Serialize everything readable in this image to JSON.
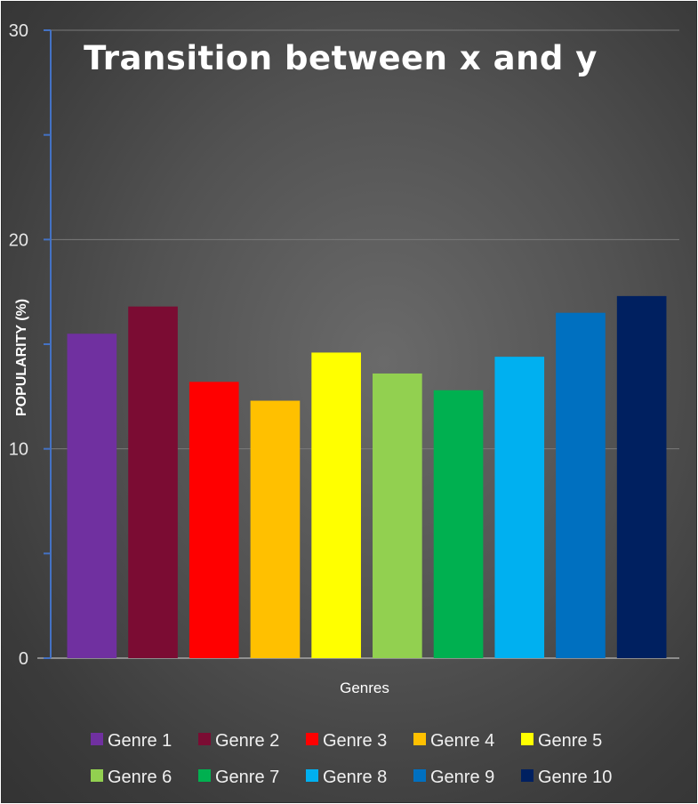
{
  "chart_data": {
    "type": "bar",
    "title": "Transition between x and y",
    "xlabel": "Genres",
    "ylabel": "POPULARITY (%)",
    "ylim": [
      0,
      30
    ],
    "yticks": [
      0,
      10,
      20,
      30
    ],
    "grid": true,
    "legend_position": "bottom",
    "series": [
      {
        "name": "Genre 1",
        "value": 15.5,
        "color": "#7030A0"
      },
      {
        "name": "Genre 2",
        "value": 16.8,
        "color": "#7B0C33"
      },
      {
        "name": "Genre 3",
        "value": 13.2,
        "color": "#FF0000"
      },
      {
        "name": "Genre 4",
        "value": 12.3,
        "color": "#FFC000"
      },
      {
        "name": "Genre 5",
        "value": 14.6,
        "color": "#FFFF00"
      },
      {
        "name": "Genre 6",
        "value": 13.6,
        "color": "#92D050"
      },
      {
        "name": "Genre 7",
        "value": 12.8,
        "color": "#00B050"
      },
      {
        "name": "Genre 8",
        "value": 14.4,
        "color": "#00B0F0"
      },
      {
        "name": "Genre 9",
        "value": 16.5,
        "color": "#0070C0"
      },
      {
        "name": "Genre 10",
        "value": 17.3,
        "color": "#002060"
      }
    ]
  }
}
